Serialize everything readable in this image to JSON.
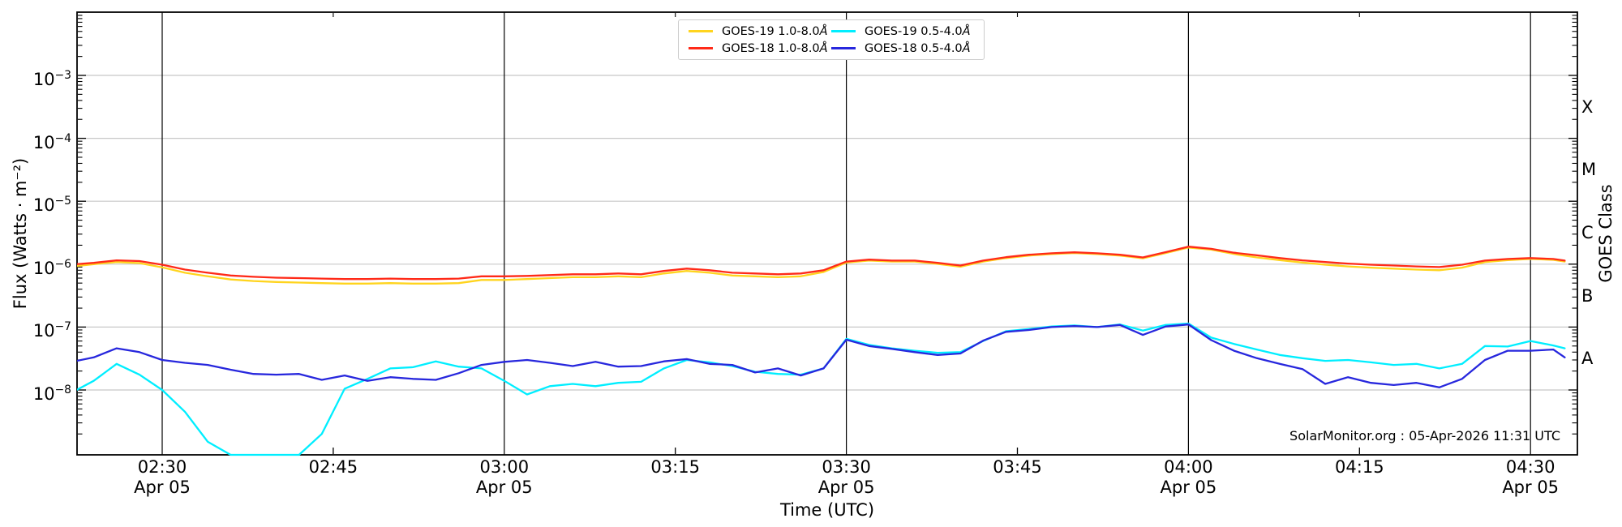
{
  "chart_data": {
    "type": "line",
    "source_annotation": "SolarMonitor.org : 05-Apr-2026 11:31 UTC",
    "xlabel": "Time (UTC)",
    "ylabel_left": "Flux (Watts · m⁻²)",
    "ylabel_right": "GOES Class",
    "x_axis": {
      "unit": "minutes UTC after midnight, 05-Apr-2026",
      "range_minutes": [
        142.5,
        274.1
      ],
      "major_ticks": [
        {
          "t": 150,
          "label": "02:30",
          "day": "Apr 05"
        },
        {
          "t": 180,
          "label": "03:00",
          "day": "Apr 05"
        },
        {
          "t": 210,
          "label": "03:30",
          "day": "Apr 05"
        },
        {
          "t": 240,
          "label": "04:00",
          "day": "Apr 05"
        },
        {
          "t": 270,
          "label": "04:30",
          "day": "Apr 05"
        }
      ],
      "minor_ticks": [
        {
          "t": 165,
          "label": "02:45"
        },
        {
          "t": 195,
          "label": "03:15"
        },
        {
          "t": 225,
          "label": "03:45"
        },
        {
          "t": 255,
          "label": "04:15"
        }
      ]
    },
    "y_axis": {
      "scale": "log",
      "range": [
        1e-09,
        0.01
      ],
      "grid": true,
      "ticks": [
        {
          "value": 0.001,
          "exp_label": "−3"
        },
        {
          "value": 0.0001,
          "exp_label": "−4"
        },
        {
          "value": 1e-05,
          "exp_label": "−5"
        },
        {
          "value": 1e-06,
          "exp_label": "−6"
        },
        {
          "value": 1e-07,
          "exp_label": "−7"
        },
        {
          "value": 1e-08,
          "exp_label": "−8"
        }
      ]
    },
    "goes_class_labels": [
      {
        "label": "X",
        "flux_center": 0.000316
      },
      {
        "label": "M",
        "flux_center": 3.16e-05
      },
      {
        "label": "C",
        "flux_center": 3.16e-06
      },
      {
        "label": "B",
        "flux_center": 3.16e-07
      },
      {
        "label": "A",
        "flux_center": 3.16e-08
      }
    ],
    "colors": {
      "background": "#ffffff",
      "grid_y": "#c8c8c8",
      "grid_x_major": "#000000",
      "axis": "#000000",
      "text": "#000000"
    },
    "legend": [
      {
        "label": "GOES-19 1.0-8.0Å",
        "color": "#ffd41e"
      },
      {
        "label": "GOES-18 1.0-8.0Å",
        "color": "#ff2a18"
      },
      {
        "label": "GOES-19 0.5-4.0Å",
        "color": "#00eeff"
      },
      {
        "label": "GOES-18 0.5-4.0Å",
        "color": "#2727dd"
      }
    ],
    "legend_position": "top-center",
    "t_minutes": [
      142.5,
      144,
      146,
      148,
      150,
      152,
      154,
      156,
      158,
      160,
      162,
      164,
      166,
      168,
      170,
      172,
      174,
      176,
      178,
      180,
      182,
      184,
      186,
      188,
      190,
      192,
      194,
      196,
      198,
      200,
      202,
      204,
      206,
      208,
      210,
      212,
      214,
      216,
      218,
      220,
      222,
      224,
      226,
      228,
      230,
      232,
      234,
      236,
      238,
      240,
      242,
      244,
      246,
      248,
      250,
      252,
      254,
      256,
      258,
      260,
      262,
      264,
      266,
      268,
      270,
      272,
      273
    ],
    "series": [
      {
        "name": "GOES-19 1.0-8.0Å",
        "color": "#ffd41e",
        "flux": [
          9.3e-07,
          1e-06,
          1.08e-06,
          1.04e-06,
          8.9e-07,
          7.3e-07,
          6.4e-07,
          5.7e-07,
          5.4e-07,
          5.2e-07,
          5.1e-07,
          5e-07,
          4.9e-07,
          4.9e-07,
          5e-07,
          4.9e-07,
          4.9e-07,
          5e-07,
          5.6e-07,
          5.6e-07,
          5.8e-07,
          6e-07,
          6.2e-07,
          6.2e-07,
          6.4e-07,
          6.2e-07,
          7.1e-07,
          7.8e-07,
          7.3e-07,
          6.6e-07,
          6.4e-07,
          6.2e-07,
          6.4e-07,
          7.5e-07,
          1.06e-06,
          1.14e-06,
          1.1e-06,
          1.1e-06,
          1.01e-06,
          9.1e-07,
          1.1e-06,
          1.25e-06,
          1.37e-06,
          1.45e-06,
          1.5e-06,
          1.45e-06,
          1.37e-06,
          1.24e-06,
          1.5e-06,
          1.84e-06,
          1.7e-06,
          1.45e-06,
          1.28e-06,
          1.16e-06,
          1.06e-06,
          9.8e-07,
          9.2e-07,
          8.8e-07,
          8.5e-07,
          8.2e-07,
          8e-07,
          8.8e-07,
          1.08e-06,
          1.16e-06,
          1.21e-06,
          1.17e-06,
          1.1e-06
        ]
      },
      {
        "name": "GOES-18 1.0-8.0Å",
        "color": "#ff2a18",
        "flux": [
          1e-06,
          1.05e-06,
          1.15e-06,
          1.12e-06,
          9.8e-07,
          8.2e-07,
          7.3e-07,
          6.6e-07,
          6.3e-07,
          6.1e-07,
          6e-07,
          5.9e-07,
          5.8e-07,
          5.8e-07,
          5.9e-07,
          5.8e-07,
          5.8e-07,
          5.9e-07,
          6.4e-07,
          6.4e-07,
          6.5e-07,
          6.7e-07,
          6.9e-07,
          6.9e-07,
          7.1e-07,
          6.9e-07,
          7.8e-07,
          8.5e-07,
          8e-07,
          7.3e-07,
          7.1e-07,
          6.9e-07,
          7.1e-07,
          8e-07,
          1.1e-06,
          1.18e-06,
          1.14e-06,
          1.14e-06,
          1.05e-06,
          9.5e-07,
          1.14e-06,
          1.29e-06,
          1.41e-06,
          1.49e-06,
          1.54e-06,
          1.49e-06,
          1.41e-06,
          1.28e-06,
          1.55e-06,
          1.9e-06,
          1.75e-06,
          1.52e-06,
          1.38e-06,
          1.25e-06,
          1.15e-06,
          1.08e-06,
          1.02e-06,
          9.8e-07,
          9.5e-07,
          9.2e-07,
          9e-07,
          9.8e-07,
          1.14e-06,
          1.21e-06,
          1.25e-06,
          1.21e-06,
          1.14e-06
        ]
      },
      {
        "name": "GOES-19 0.5-4.0Å",
        "color": "#00eeff",
        "flux": [
          1e-08,
          1.4e-08,
          2.6e-08,
          1.75e-08,
          1e-08,
          4.5e-09,
          1.5e-09,
          9e-10,
          9e-10,
          9e-10,
          9e-10,
          2e-09,
          1.05e-08,
          1.5e-08,
          2.2e-08,
          2.3e-08,
          2.85e-08,
          2.35e-08,
          2.2e-08,
          1.4e-08,
          8.5e-09,
          1.15e-08,
          1.25e-08,
          1.15e-08,
          1.3e-08,
          1.35e-08,
          2.2e-08,
          3e-08,
          2.75e-08,
          2.4e-08,
          1.95e-08,
          1.8e-08,
          1.75e-08,
          2.2e-08,
          6.5e-08,
          5.2e-08,
          4.6e-08,
          4.2e-08,
          3.9e-08,
          4e-08,
          6e-08,
          8.6e-08,
          9.3e-08,
          1.02e-07,
          1.06e-07,
          1e-07,
          1.1e-07,
          8.8e-08,
          1.08e-07,
          1.14e-07,
          6.8e-08,
          5.4e-08,
          4.4e-08,
          3.6e-08,
          3.2e-08,
          2.9e-08,
          3e-08,
          2.75e-08,
          2.5e-08,
          2.6e-08,
          2.2e-08,
          2.6e-08,
          5e-08,
          4.9e-08,
          6e-08,
          5.1e-08,
          4.6e-08
        ]
      },
      {
        "name": "GOES-18 0.5-4.0Å",
        "color": "#2727dd",
        "flux": [
          2.9e-08,
          3.3e-08,
          4.6e-08,
          4e-08,
          3e-08,
          2.7e-08,
          2.5e-08,
          2.1e-08,
          1.8e-08,
          1.75e-08,
          1.8e-08,
          1.45e-08,
          1.7e-08,
          1.4e-08,
          1.6e-08,
          1.5e-08,
          1.45e-08,
          1.85e-08,
          2.5e-08,
          2.8e-08,
          3e-08,
          2.7e-08,
          2.4e-08,
          2.8e-08,
          2.35e-08,
          2.4e-08,
          2.85e-08,
          3.1e-08,
          2.6e-08,
          2.5e-08,
          1.9e-08,
          2.2e-08,
          1.7e-08,
          2.2e-08,
          6.3e-08,
          5e-08,
          4.5e-08,
          4e-08,
          3.6e-08,
          3.8e-08,
          6.1e-08,
          8.4e-08,
          9e-08,
          1e-07,
          1.04e-07,
          1e-07,
          1.08e-07,
          7.5e-08,
          1.02e-07,
          1.1e-07,
          6.2e-08,
          4.2e-08,
          3.2e-08,
          2.6e-08,
          2.15e-08,
          1.25e-08,
          1.6e-08,
          1.3e-08,
          1.2e-08,
          1.3e-08,
          1.1e-08,
          1.5e-08,
          3e-08,
          4.2e-08,
          4.2e-08,
          4.4e-08,
          3.3e-08
        ]
      }
    ]
  }
}
